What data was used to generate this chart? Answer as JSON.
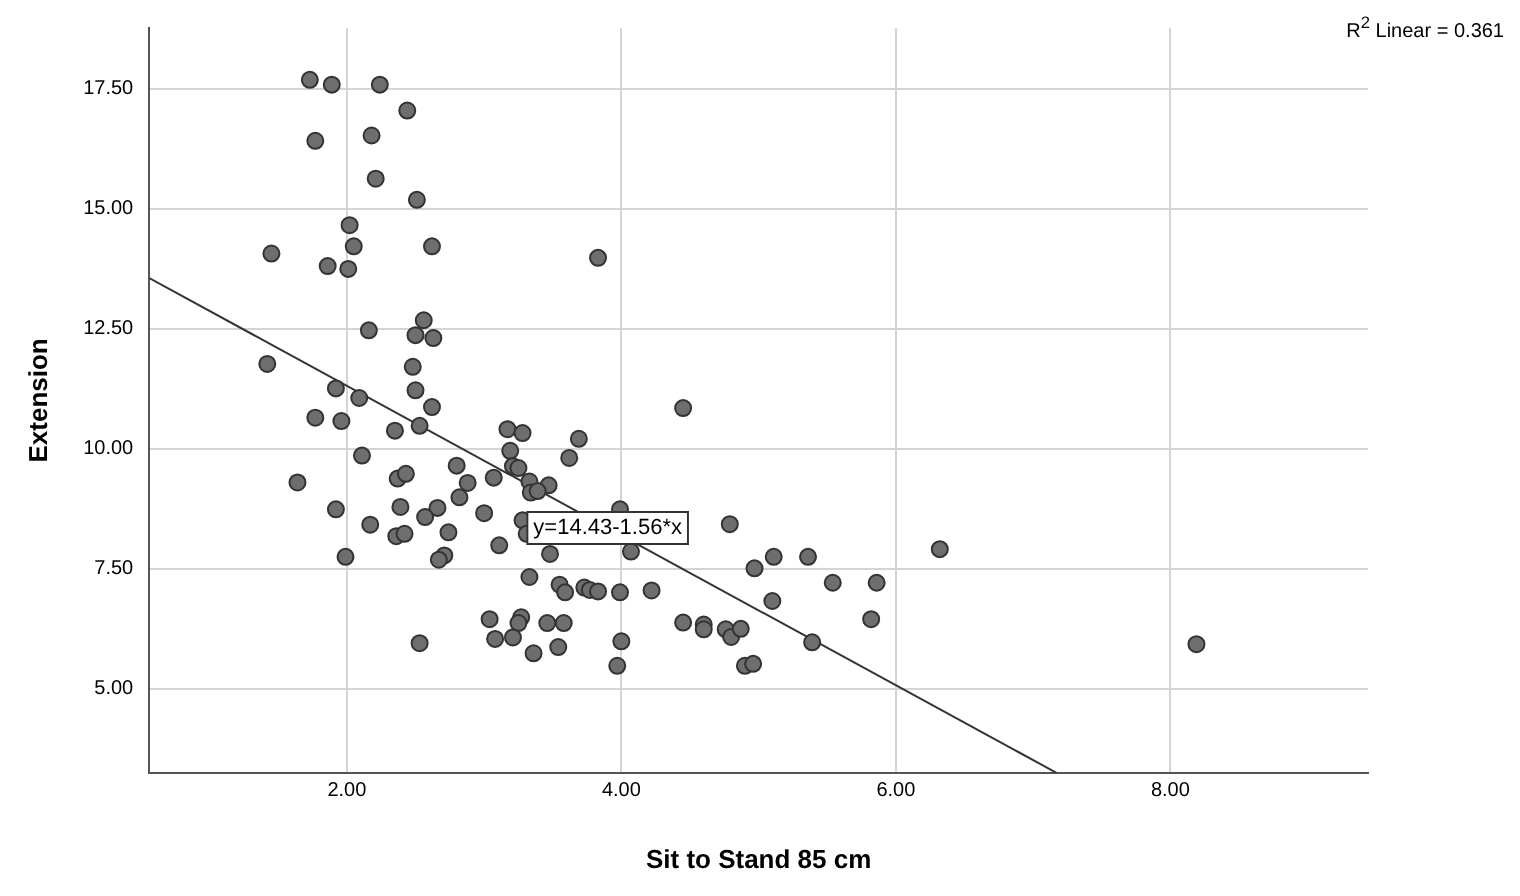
{
  "chart_data": {
    "type": "scatter",
    "xlabel": "Sit to Stand 85 cm",
    "ylabel": "Extension",
    "xlim": [
      0.56,
      9.44
    ],
    "ylim": [
      3.25,
      18.77
    ],
    "xticks": [
      {
        "value": 2,
        "label": "2.00"
      },
      {
        "value": 4,
        "label": "4.00"
      },
      {
        "value": 6,
        "label": "6.00"
      },
      {
        "value": 8,
        "label": "8.00"
      }
    ],
    "yticks": [
      {
        "value": 5,
        "label": "5.00"
      },
      {
        "value": 7.5,
        "label": "7.50"
      },
      {
        "value": 10,
        "label": "10.00"
      },
      {
        "value": 12.5,
        "label": "12.50"
      },
      {
        "value": 15,
        "label": "15.00"
      },
      {
        "value": 17.5,
        "label": "17.50"
      }
    ],
    "grid": true,
    "legend": false,
    "marker": "circle",
    "series": [
      {
        "color": "#6e6e6e",
        "x": [
          1.73,
          1.89,
          2.24,
          2.44,
          1.77,
          2.18,
          2.21,
          2.51,
          2.02,
          1.45,
          2.05,
          2.62,
          3.83,
          1.86,
          2.01,
          2.56,
          2.16,
          2.5,
          2.63,
          1.42,
          2.48,
          1.92,
          2.5,
          2.09,
          2.62,
          1.77,
          1.96,
          2.35,
          2.53,
          3.17,
          3.28,
          3.69,
          3.19,
          3.62,
          2.11,
          3.21,
          3.25,
          2.8,
          1.64,
          2.37,
          2.43,
          3.07,
          2.88,
          3.33,
          3.47,
          3.34,
          3.39,
          1.92,
          2.39,
          2.66,
          2.82,
          2.57,
          3.0,
          2.17,
          2.36,
          2.42,
          2.74,
          3.28,
          3.31,
          3.11,
          1.99,
          2.71,
          2.67,
          3.48,
          3.99,
          4.07,
          3.33,
          3.55,
          3.59,
          3.73,
          3.77,
          3.83,
          3.99,
          4.22,
          3.04,
          3.27,
          3.25,
          3.46,
          3.58,
          3.08,
          3.21,
          3.36,
          3.54,
          2.53,
          4.0,
          3.97,
          4.45,
          4.79,
          6.32,
          4.97,
          5.11,
          5.36,
          5.54,
          5.86,
          5.1,
          5.82,
          4.45,
          4.6,
          4.6,
          4.76,
          4.8,
          4.87,
          4.9,
          4.96,
          5.39,
          8.19
        ],
        "values": [
          17.69,
          17.59,
          17.59,
          17.05,
          16.42,
          16.53,
          15.63,
          15.19,
          14.66,
          14.07,
          14.22,
          14.22,
          13.98,
          13.81,
          13.75,
          12.68,
          12.47,
          12.37,
          12.31,
          11.77,
          11.71,
          11.26,
          11.22,
          11.06,
          10.87,
          10.65,
          10.58,
          10.38,
          10.48,
          10.41,
          10.33,
          10.21,
          9.96,
          9.81,
          9.86,
          9.64,
          9.6,
          9.65,
          9.3,
          9.38,
          9.48,
          9.4,
          9.29,
          9.32,
          9.24,
          9.09,
          9.12,
          8.74,
          8.79,
          8.77,
          8.99,
          8.58,
          8.66,
          8.42,
          8.18,
          8.23,
          8.26,
          8.51,
          8.23,
          7.99,
          7.75,
          7.78,
          7.69,
          7.81,
          8.74,
          7.86,
          7.33,
          7.17,
          7.01,
          7.11,
          7.06,
          7.03,
          7.01,
          7.05,
          6.45,
          6.49,
          6.37,
          6.37,
          6.37,
          6.04,
          6.07,
          5.74,
          5.87,
          5.95,
          5.99,
          5.48,
          10.85,
          8.43,
          7.91,
          7.51,
          7.75,
          7.75,
          7.21,
          7.21,
          6.83,
          6.45,
          6.38,
          6.34,
          6.24,
          6.24,
          6.08,
          6.25,
          5.48,
          5.52,
          5.97,
          5.93
        ]
      },
      {
        "type": "line",
        "color": "#333333",
        "marker": "none",
        "x": [
          0.56,
          7.17
        ],
        "values": [
          13.56,
          3.25
        ]
      }
    ],
    "annotations": [
      {
        "text": "y=14.43-1.56*x",
        "x": 3.9,
        "y": 8.35
      },
      "R$^{2}$ Linear = 0.361"
    ]
  }
}
